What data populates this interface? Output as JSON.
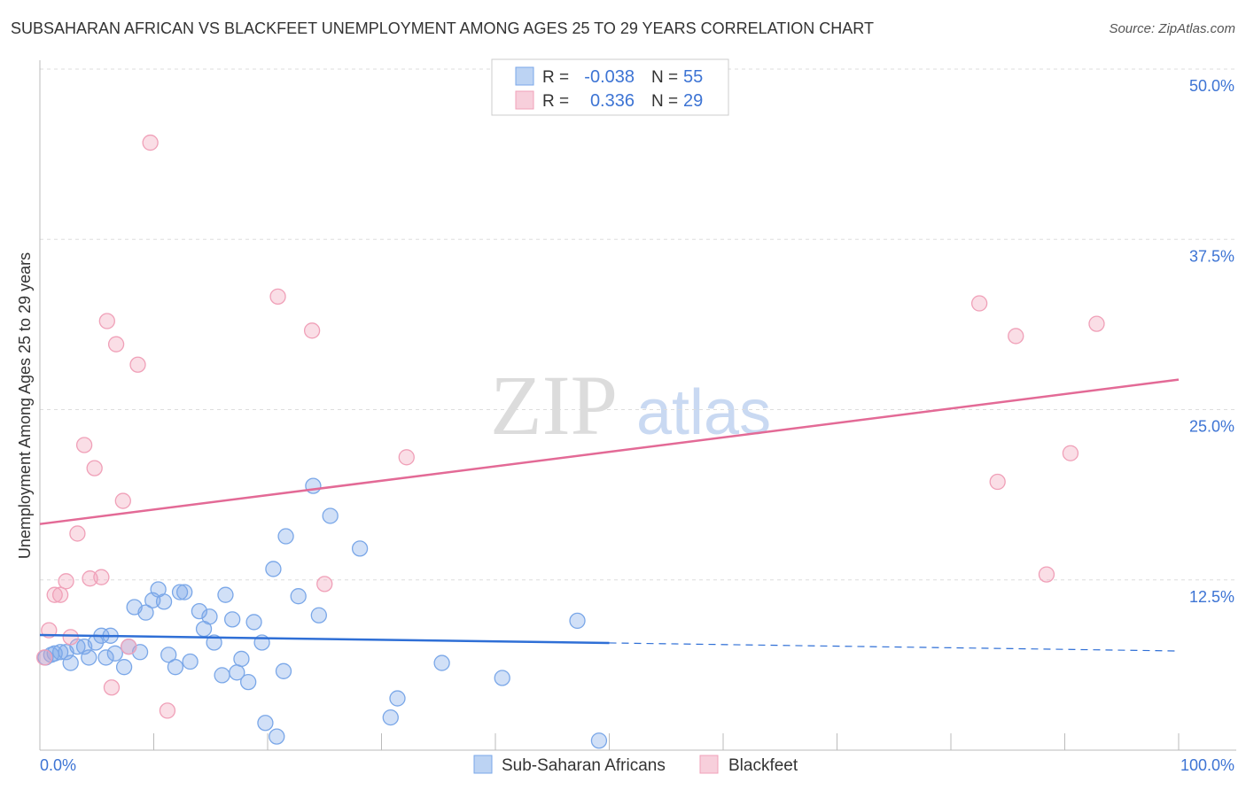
{
  "title": "SUBSAHARAN AFRICAN VS BLACKFEET UNEMPLOYMENT AMONG AGES 25 TO 29 YEARS CORRELATION CHART",
  "source": "Source: ZipAtlas.com",
  "watermark": "ZIPatlas",
  "chart_data": {
    "type": "scatter",
    "title": "SUBSAHARAN AFRICAN VS BLACKFEET UNEMPLOYMENT AMONG AGES 25 TO 29 YEARS CORRELATION CHART",
    "xlabel": "",
    "ylabel": "Unemployment Among Ages 25 to 29 years",
    "xlim": [
      0,
      100
    ],
    "ylim": [
      0,
      50
    ],
    "x_tick_labels": [
      "0.0%",
      "100.0%"
    ],
    "y_ticks": [
      12.5,
      25,
      37.5,
      50
    ],
    "y_tick_labels": [
      "12.5%",
      "25.0%",
      "37.5%",
      "50.0%"
    ],
    "grid": true,
    "legend_stats": [
      {
        "r_label": "R =",
        "r": "-0.038",
        "n_label": "N =",
        "n": "55"
      },
      {
        "r_label": "R =",
        "r": "0.336",
        "n_label": "N =",
        "n": "29"
      }
    ],
    "series": [
      {
        "name": "Sub-Saharan Africans",
        "color": "#7aa7e8",
        "line_color": "#2f6fd6",
        "trend": {
          "x": [
            0,
            50,
            100
          ],
          "y": [
            8.45,
            7.87,
            7.28
          ],
          "solid_until": 50
        },
        "points": [
          [
            0.5,
            6.8
          ],
          [
            1.0,
            7.0
          ],
          [
            1.3,
            7.1
          ],
          [
            1.8,
            7.2
          ],
          [
            2.3,
            7.2
          ],
          [
            2.7,
            6.4
          ],
          [
            3.3,
            7.6
          ],
          [
            3.9,
            7.6
          ],
          [
            4.3,
            6.8
          ],
          [
            4.9,
            7.9
          ],
          [
            5.4,
            8.4
          ],
          [
            5.8,
            6.8
          ],
          [
            6.2,
            8.4
          ],
          [
            6.6,
            7.1
          ],
          [
            7.4,
            6.1
          ],
          [
            7.8,
            7.6
          ],
          [
            8.3,
            10.5
          ],
          [
            8.8,
            7.2
          ],
          [
            9.3,
            10.1
          ],
          [
            9.9,
            11.0
          ],
          [
            10.4,
            11.8
          ],
          [
            10.9,
            10.9
          ],
          [
            11.3,
            7.0
          ],
          [
            11.9,
            6.1
          ],
          [
            12.3,
            11.6
          ],
          [
            12.7,
            11.6
          ],
          [
            13.2,
            6.5
          ],
          [
            14.0,
            10.2
          ],
          [
            14.4,
            8.9
          ],
          [
            14.9,
            9.8
          ],
          [
            15.3,
            7.9
          ],
          [
            16.0,
            5.5
          ],
          [
            16.3,
            11.4
          ],
          [
            16.9,
            9.6
          ],
          [
            17.3,
            5.7
          ],
          [
            17.7,
            6.7
          ],
          [
            18.3,
            5.0
          ],
          [
            18.8,
            9.4
          ],
          [
            19.5,
            7.9
          ],
          [
            19.8,
            2.0
          ],
          [
            20.5,
            13.3
          ],
          [
            20.8,
            1.0
          ],
          [
            21.4,
            5.8
          ],
          [
            21.6,
            15.7
          ],
          [
            22.7,
            11.3
          ],
          [
            24.0,
            19.4
          ],
          [
            24.5,
            9.9
          ],
          [
            25.5,
            17.2
          ],
          [
            28.1,
            14.8
          ],
          [
            30.8,
            2.4
          ],
          [
            31.4,
            3.8
          ],
          [
            35.3,
            6.4
          ],
          [
            40.6,
            5.3
          ],
          [
            47.2,
            9.5
          ],
          [
            49.1,
            0.7
          ]
        ]
      },
      {
        "name": "Blackfeet",
        "color": "#f0a0b8",
        "line_color": "#e36a96",
        "trend": {
          "x": [
            0,
            100
          ],
          "y": [
            16.6,
            27.2
          ],
          "solid_until": 100
        },
        "points": [
          [
            0.4,
            6.8
          ],
          [
            0.8,
            8.8
          ],
          [
            1.3,
            11.4
          ],
          [
            1.8,
            11.4
          ],
          [
            2.3,
            12.4
          ],
          [
            2.7,
            8.3
          ],
          [
            3.3,
            15.9
          ],
          [
            3.9,
            22.4
          ],
          [
            4.4,
            12.6
          ],
          [
            4.8,
            20.7
          ],
          [
            5.4,
            12.7
          ],
          [
            5.9,
            31.5
          ],
          [
            6.3,
            4.6
          ],
          [
            6.7,
            29.8
          ],
          [
            7.3,
            18.3
          ],
          [
            7.8,
            7.6
          ],
          [
            8.6,
            28.3
          ],
          [
            9.7,
            44.6
          ],
          [
            11.2,
            2.9
          ],
          [
            20.9,
            33.3
          ],
          [
            23.9,
            30.8
          ],
          [
            25.0,
            12.2
          ],
          [
            32.2,
            21.5
          ],
          [
            82.5,
            32.8
          ],
          [
            84.1,
            19.7
          ],
          [
            85.7,
            30.4
          ],
          [
            88.4,
            12.9
          ],
          [
            90.5,
            21.8
          ],
          [
            92.8,
            31.3
          ]
        ]
      }
    ]
  }
}
